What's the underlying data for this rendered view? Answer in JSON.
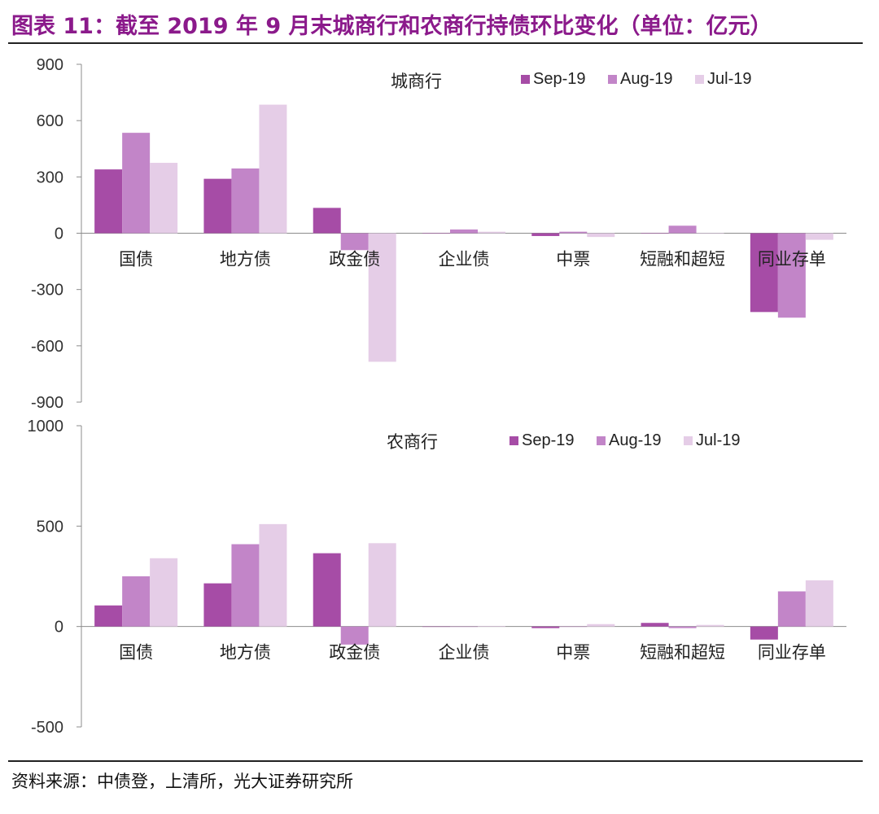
{
  "title": "图表 11：截至 2019 年 9 月末城商行和农商行持债环比变化（单位：亿元）",
  "source": "资料来源：中债登，上清所，光大证券研究所",
  "colors": {
    "title": "#8b1a8b",
    "sep": "#a64ca6",
    "aug": "#c285c8",
    "jul": "#e5cde7"
  },
  "chart_data": [
    {
      "type": "bar",
      "title": "城商行",
      "categories": [
        "国债",
        "地方债",
        "政金债",
        "企业债",
        "中票",
        "短融和超短",
        "同业存单"
      ],
      "ylim": [
        -900,
        900
      ],
      "yticks": [
        900,
        600,
        300,
        0,
        -300,
        -600,
        -900
      ],
      "legend_position": "top-right",
      "series": [
        {
          "name": "Sep-19",
          "values": [
            340,
            290,
            135,
            0,
            -15,
            0,
            -420
          ]
        },
        {
          "name": "Aug-19",
          "values": [
            535,
            345,
            -90,
            20,
            8,
            40,
            -450
          ]
        },
        {
          "name": "Jul-19",
          "values": [
            375,
            685,
            -685,
            8,
            -20,
            -3,
            -35
          ]
        }
      ]
    },
    {
      "type": "bar",
      "title": "农商行",
      "categories": [
        "国债",
        "地方债",
        "政金债",
        "企业债",
        "中票",
        "短融和超短",
        "同业存单"
      ],
      "ylim": [
        -500,
        1000
      ],
      "yticks": [
        1000,
        500,
        0,
        -500
      ],
      "legend_position": "top-right",
      "series": [
        {
          "name": "Sep-19",
          "values": [
            105,
            215,
            365,
            0,
            -8,
            18,
            -65
          ]
        },
        {
          "name": "Aug-19",
          "values": [
            250,
            410,
            -90,
            0,
            0,
            -8,
            175
          ]
        },
        {
          "name": "Jul-19",
          "values": [
            340,
            510,
            415,
            3,
            12,
            8,
            230
          ]
        }
      ]
    }
  ]
}
